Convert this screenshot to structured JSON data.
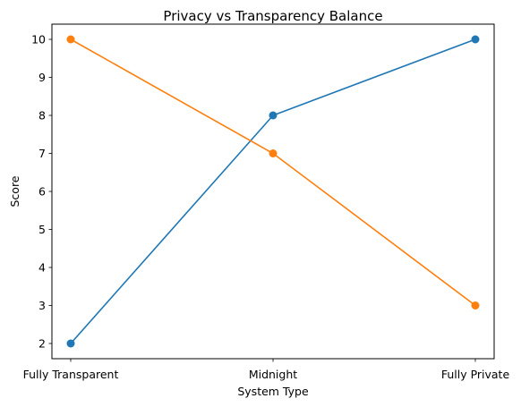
{
  "chart_data": {
    "type": "line",
    "title": "Privacy vs Transparency Balance",
    "xlabel": "System Type",
    "ylabel": "Score",
    "categories": [
      "Fully Transparent",
      "Midnight",
      "Fully Private"
    ],
    "ylim": [
      1.6,
      10.4
    ],
    "yticks": [
      2,
      3,
      4,
      5,
      6,
      7,
      8,
      9,
      10
    ],
    "grid": false,
    "series": [
      {
        "values": [
          2,
          8,
          10
        ],
        "color": "#1f77b4",
        "marker": "circle"
      },
      {
        "values": [
          10,
          7,
          3
        ],
        "color": "#ff7f0e",
        "marker": "circle"
      }
    ]
  }
}
